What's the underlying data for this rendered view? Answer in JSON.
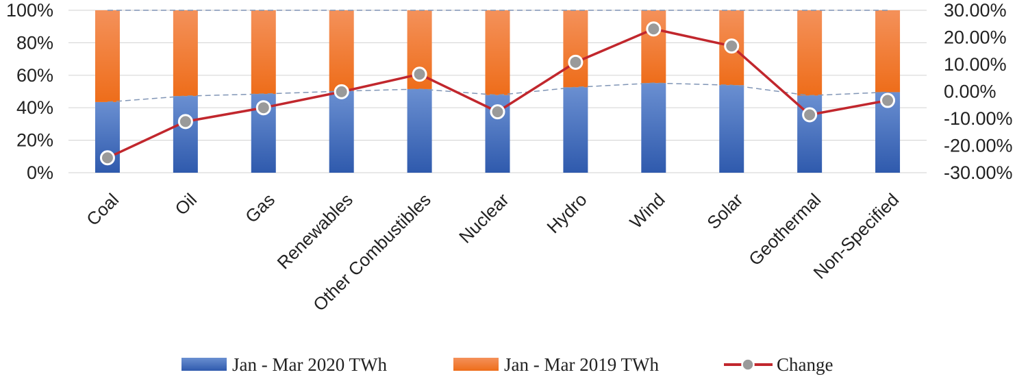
{
  "chart_data": {
    "type": "bar",
    "stacked": "percent",
    "categories": [
      "Coal",
      "Oil",
      "Gas",
      "Renewables",
      "Other Combustibles",
      "Nuclear",
      "Hydro",
      "Wind",
      "Solar",
      "Geothermal",
      "Non-Specified"
    ],
    "series": [
      {
        "name": "Jan - Mar 2020 TWh",
        "kind": "bar",
        "axis": "left",
        "share_percent": [
          43.5,
          47.2,
          48.5,
          50.2,
          51.5,
          47.8,
          52.6,
          55.2,
          53.9,
          47.5,
          49.6
        ]
      },
      {
        "name": "Jan - Mar 2019 TWh",
        "kind": "bar",
        "axis": "left",
        "share_percent": [
          56.5,
          52.8,
          51.5,
          49.8,
          48.5,
          52.2,
          47.4,
          44.8,
          46.1,
          52.5,
          50.4
        ]
      },
      {
        "name": "Change",
        "kind": "line",
        "axis": "right",
        "values": [
          -24.5,
          -11.1,
          -6.0,
          -0.1,
          6.4,
          -7.5,
          10.8,
          23.1,
          16.8,
          -8.6,
          -3.3
        ]
      }
    ],
    "left_axis": {
      "ylim": [
        0,
        100
      ],
      "ticks": [
        "0%",
        "20%",
        "40%",
        "60%",
        "80%",
        "100%"
      ]
    },
    "right_axis": {
      "ylim": [
        -30,
        30
      ],
      "ticks": [
        "-30.00%",
        "-20.00%",
        "-10.00%",
        "0.00%",
        "10.00%",
        "20.00%",
        "30.00%"
      ]
    },
    "legend": {
      "position": "bottom",
      "labels": [
        "Jan - Mar 2020 TWh",
        "Jan - Mar 2019 TWh",
        "Change"
      ]
    },
    "colors": {
      "bar2020": "#3a66b8",
      "bar2019": "#f0792b",
      "line": "#c1272d",
      "marker": "#9a9a9a",
      "gridline": "#d9d9d9",
      "series_line": "#7f94b5"
    }
  }
}
